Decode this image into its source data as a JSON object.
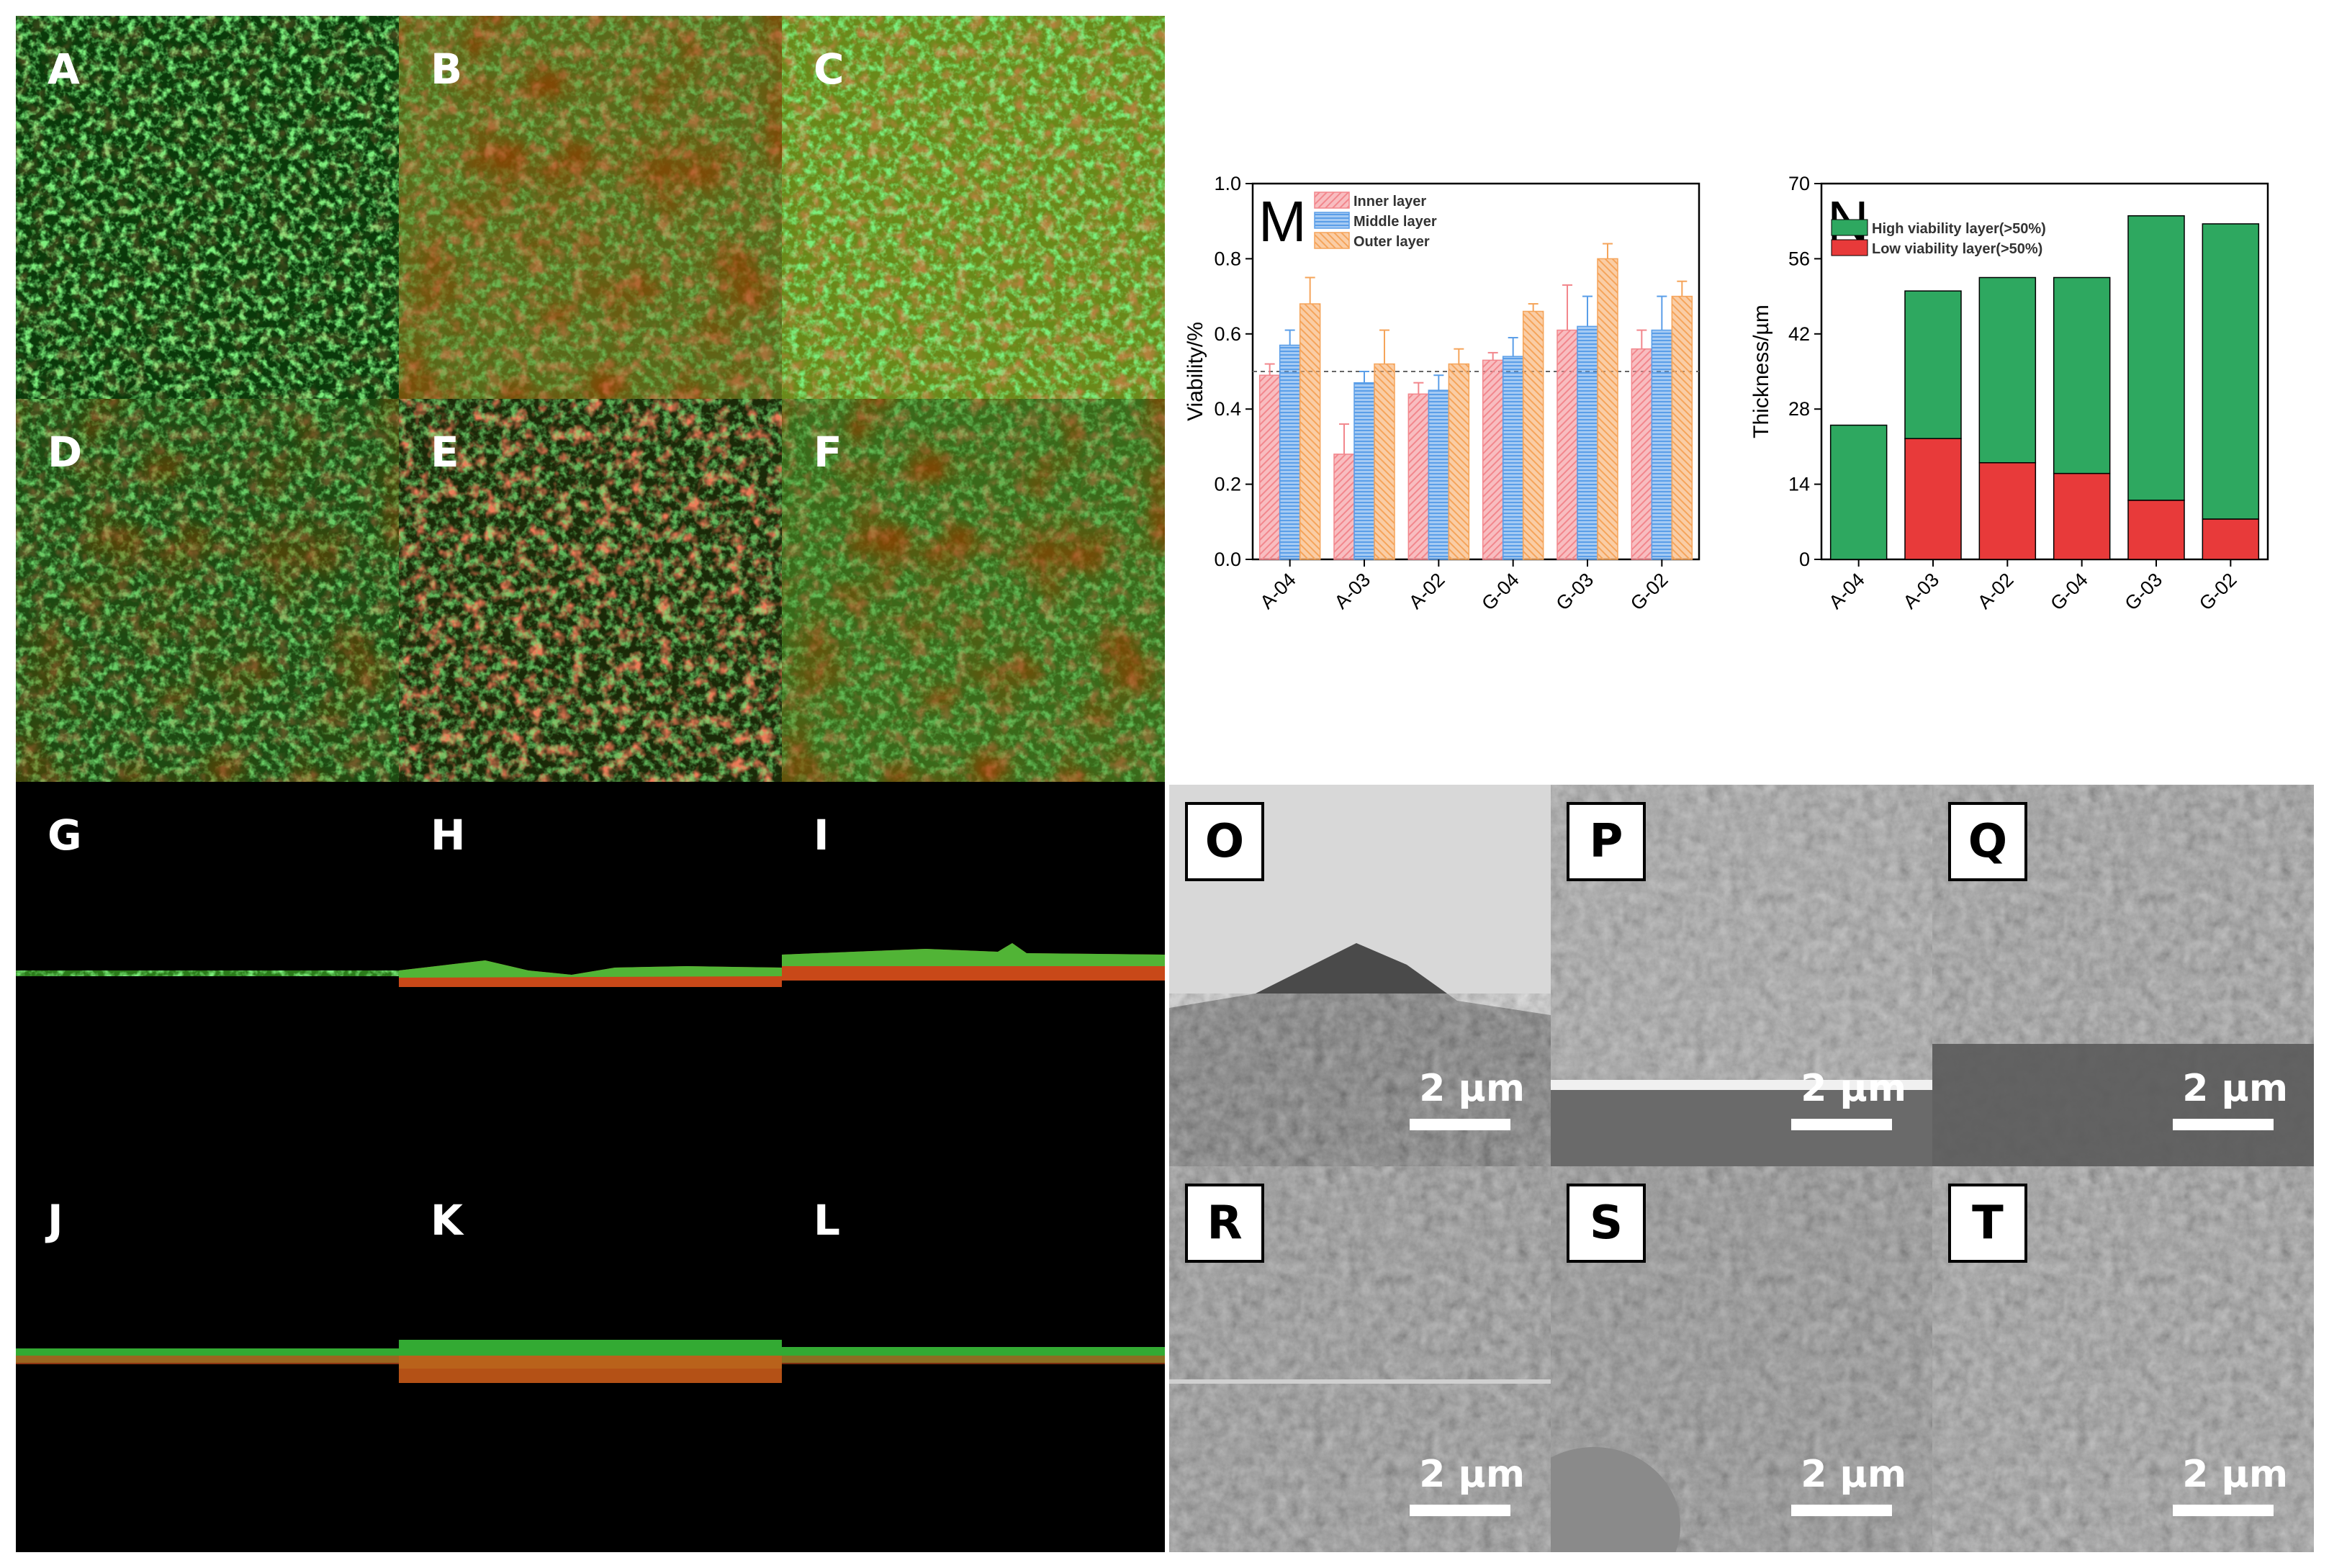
{
  "confocal_top_labels": [
    "A",
    "B",
    "C",
    "D",
    "E",
    "F"
  ],
  "confocal_side_labels": [
    "G",
    "H",
    "I",
    "J",
    "K",
    "L"
  ],
  "sem_panels": [
    {
      "label": "O",
      "scale": "2 µm"
    },
    {
      "label": "P",
      "scale": "2 µm"
    },
    {
      "label": "Q",
      "scale": "2 µm"
    },
    {
      "label": "R",
      "scale": "2 µm"
    },
    {
      "label": "S",
      "scale": "2 µm"
    },
    {
      "label": "T",
      "scale": "2 µm"
    }
  ],
  "colors": {
    "live": "#3cc83c",
    "dead": "#e03020",
    "inner": "#f2868c",
    "middle": "#5a9ee8",
    "outer": "#f5a45a",
    "high": "#2ea860",
    "low": "#e83a3a"
  },
  "chart_data": [
    {
      "panel_label": "M",
      "type": "bar",
      "categories": [
        "A-04",
        "A-03",
        "A-02",
        "G-04",
        "G-03",
        "G-02"
      ],
      "series": [
        {
          "name": "Inner layer",
          "values": [
            0.49,
            0.28,
            0.44,
            0.53,
            0.61,
            0.56
          ],
          "errors": [
            0.03,
            0.08,
            0.03,
            0.02,
            0.12,
            0.05
          ]
        },
        {
          "name": "Middle layer",
          "values": [
            0.57,
            0.47,
            0.45,
            0.54,
            0.62,
            0.61
          ],
          "errors": [
            0.04,
            0.03,
            0.04,
            0.05,
            0.08,
            0.09
          ]
        },
        {
          "name": "Outer layer",
          "values": [
            0.68,
            0.52,
            0.52,
            0.66,
            0.8,
            0.7
          ],
          "errors": [
            0.07,
            0.09,
            0.04,
            0.02,
            0.04,
            0.04
          ]
        }
      ],
      "reference_line": 0.5,
      "ylabel": "Viability/%",
      "ylim": [
        0,
        1.0
      ],
      "yticks": [
        "0.0",
        "0.2",
        "0.4",
        "0.6",
        "0.8",
        "1.0"
      ],
      "legend": "top-left"
    },
    {
      "panel_label": "N",
      "type": "bar",
      "stacked": true,
      "categories": [
        "A-04",
        "A-03",
        "A-02",
        "G-04",
        "G-03",
        "G-02"
      ],
      "series": [
        {
          "name": "Low viability layer(>50%)",
          "values": [
            0,
            22.5,
            18,
            16,
            11,
            7.5
          ]
        },
        {
          "name": "High viability layer(>50%)",
          "values": [
            25,
            27.5,
            34.5,
            36.5,
            53,
            55
          ]
        }
      ],
      "ylabel": "Thickness/µm",
      "ylim": [
        0,
        70
      ],
      "yticks": [
        "0",
        "14",
        "28",
        "42",
        "56",
        "70"
      ],
      "legend": "top-left"
    }
  ]
}
